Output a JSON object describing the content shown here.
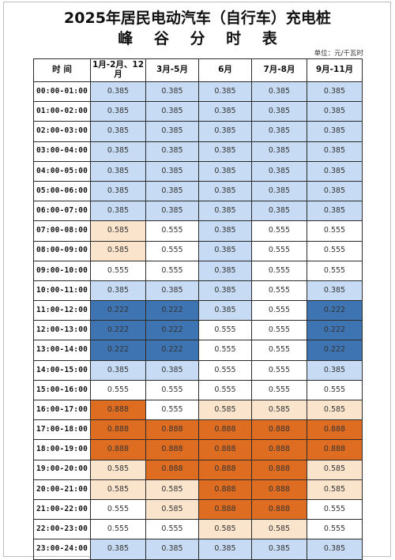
{
  "title": "2025年居民电动汽车（自行车）充电桩",
  "subtitle": "峰 谷 分 时 表",
  "unit": "单位：元/千瓦时",
  "colors": {
    "valley": "#c7dcf4",
    "deep_valley": "#3f74b3",
    "flat": "#ffffff",
    "peak": "#fbe4cc",
    "sharp_peak": "#de6d22"
  },
  "headers": [
    "时 间",
    "1月-2月、12月",
    "3月-5月",
    "6月",
    "7月-8月",
    "9月-11月"
  ],
  "rows": [
    {
      "time": "00:00-01:00",
      "values": [
        "0.385",
        "0.385",
        "0.385",
        "0.385",
        "0.385"
      ],
      "levels": [
        "valley",
        "valley",
        "valley",
        "valley",
        "valley"
      ]
    },
    {
      "time": "01:00-02:00",
      "values": [
        "0.385",
        "0.385",
        "0.385",
        "0.385",
        "0.385"
      ],
      "levels": [
        "valley",
        "valley",
        "valley",
        "valley",
        "valley"
      ]
    },
    {
      "time": "02:00-03:00",
      "values": [
        "0.385",
        "0.385",
        "0.385",
        "0.385",
        "0.385"
      ],
      "levels": [
        "valley",
        "valley",
        "valley",
        "valley",
        "valley"
      ]
    },
    {
      "time": "03:00-04:00",
      "values": [
        "0.385",
        "0.385",
        "0.385",
        "0.385",
        "0.385"
      ],
      "levels": [
        "valley",
        "valley",
        "valley",
        "valley",
        "valley"
      ]
    },
    {
      "time": "04:00-05:00",
      "values": [
        "0.385",
        "0.385",
        "0.385",
        "0.385",
        "0.385"
      ],
      "levels": [
        "valley",
        "valley",
        "valley",
        "valley",
        "valley"
      ]
    },
    {
      "time": "05:00-06:00",
      "values": [
        "0.385",
        "0.385",
        "0.385",
        "0.385",
        "0.385"
      ],
      "levels": [
        "valley",
        "valley",
        "valley",
        "valley",
        "valley"
      ]
    },
    {
      "time": "06:00-07:00",
      "values": [
        "0.385",
        "0.385",
        "0.385",
        "0.385",
        "0.385"
      ],
      "levels": [
        "valley",
        "valley",
        "valley",
        "valley",
        "valley"
      ]
    },
    {
      "time": "07:00-08:00",
      "values": [
        "0.585",
        "0.555",
        "0.385",
        "0.555",
        "0.555"
      ],
      "levels": [
        "peak",
        "flat",
        "valley",
        "flat",
        "flat"
      ]
    },
    {
      "time": "08:00-09:00",
      "values": [
        "0.585",
        "0.555",
        "0.385",
        "0.555",
        "0.555"
      ],
      "levels": [
        "peak",
        "flat",
        "valley",
        "flat",
        "flat"
      ]
    },
    {
      "time": "09:00-10:00",
      "values": [
        "0.555",
        "0.555",
        "0.385",
        "0.555",
        "0.555"
      ],
      "levels": [
        "flat",
        "flat",
        "valley",
        "flat",
        "flat"
      ]
    },
    {
      "time": "10:00-11:00",
      "values": [
        "0.385",
        "0.385",
        "0.385",
        "0.555",
        "0.385"
      ],
      "levels": [
        "valley",
        "valley",
        "valley",
        "flat",
        "valley"
      ]
    },
    {
      "time": "11:00-12:00",
      "values": [
        "0.222",
        "0.222",
        "0.385",
        "0.555",
        "0.222"
      ],
      "levels": [
        "deep",
        "deep",
        "valley",
        "flat",
        "deep"
      ]
    },
    {
      "time": "12:00-13:00",
      "values": [
        "0.222",
        "0.222",
        "0.555",
        "0.555",
        "0.222"
      ],
      "levels": [
        "deep",
        "deep",
        "flat",
        "flat",
        "deep"
      ]
    },
    {
      "time": "13:00-14:00",
      "values": [
        "0.222",
        "0.222",
        "0.555",
        "0.555",
        "0.222"
      ],
      "levels": [
        "deep",
        "deep",
        "flat",
        "flat",
        "deep"
      ]
    },
    {
      "time": "14:00-15:00",
      "values": [
        "0.385",
        "0.385",
        "0.555",
        "0.555",
        "0.385"
      ],
      "levels": [
        "valley",
        "valley",
        "flat",
        "flat",
        "valley"
      ]
    },
    {
      "time": "15:00-16:00",
      "values": [
        "0.555",
        "0.555",
        "0.555",
        "0.555",
        "0.555"
      ],
      "levels": [
        "flat",
        "flat",
        "flat",
        "flat",
        "flat"
      ]
    },
    {
      "time": "16:00-17:00",
      "values": [
        "0.888",
        "0.555",
        "0.585",
        "0.585",
        "0.585"
      ],
      "levels": [
        "sharp",
        "flat",
        "peak",
        "peak",
        "peak"
      ]
    },
    {
      "time": "17:00-18:00",
      "values": [
        "0.888",
        "0.888",
        "0.888",
        "0.888",
        "0.888"
      ],
      "levels": [
        "sharp",
        "sharp",
        "sharp",
        "sharp",
        "sharp"
      ]
    },
    {
      "time": "18:00-19:00",
      "values": [
        "0.888",
        "0.888",
        "0.888",
        "0.888",
        "0.888"
      ],
      "levels": [
        "sharp",
        "sharp",
        "sharp",
        "sharp",
        "sharp"
      ]
    },
    {
      "time": "19:00-20:00",
      "values": [
        "0.585",
        "0.888",
        "0.888",
        "0.888",
        "0.585"
      ],
      "levels": [
        "peak",
        "sharp",
        "sharp",
        "sharp",
        "peak"
      ]
    },
    {
      "time": "20:00-21:00",
      "values": [
        "0.585",
        "0.585",
        "0.888",
        "0.888",
        "0.585"
      ],
      "levels": [
        "peak",
        "peak",
        "sharp",
        "sharp",
        "peak"
      ]
    },
    {
      "time": "21:00-22:00",
      "values": [
        "0.555",
        "0.585",
        "0.888",
        "0.888",
        "0.555"
      ],
      "levels": [
        "flat",
        "peak",
        "sharp",
        "sharp",
        "flat"
      ]
    },
    {
      "time": "22:00-23:00",
      "values": [
        "0.555",
        "0.555",
        "0.585",
        "0.585",
        "0.555"
      ],
      "levels": [
        "flat",
        "flat",
        "peak",
        "peak",
        "flat"
      ]
    },
    {
      "time": "23:00-24:00",
      "values": [
        "0.385",
        "0.385",
        "0.385",
        "0.385",
        "0.385"
      ],
      "levels": [
        "valley",
        "valley",
        "valley",
        "valley",
        "valley"
      ]
    }
  ]
}
